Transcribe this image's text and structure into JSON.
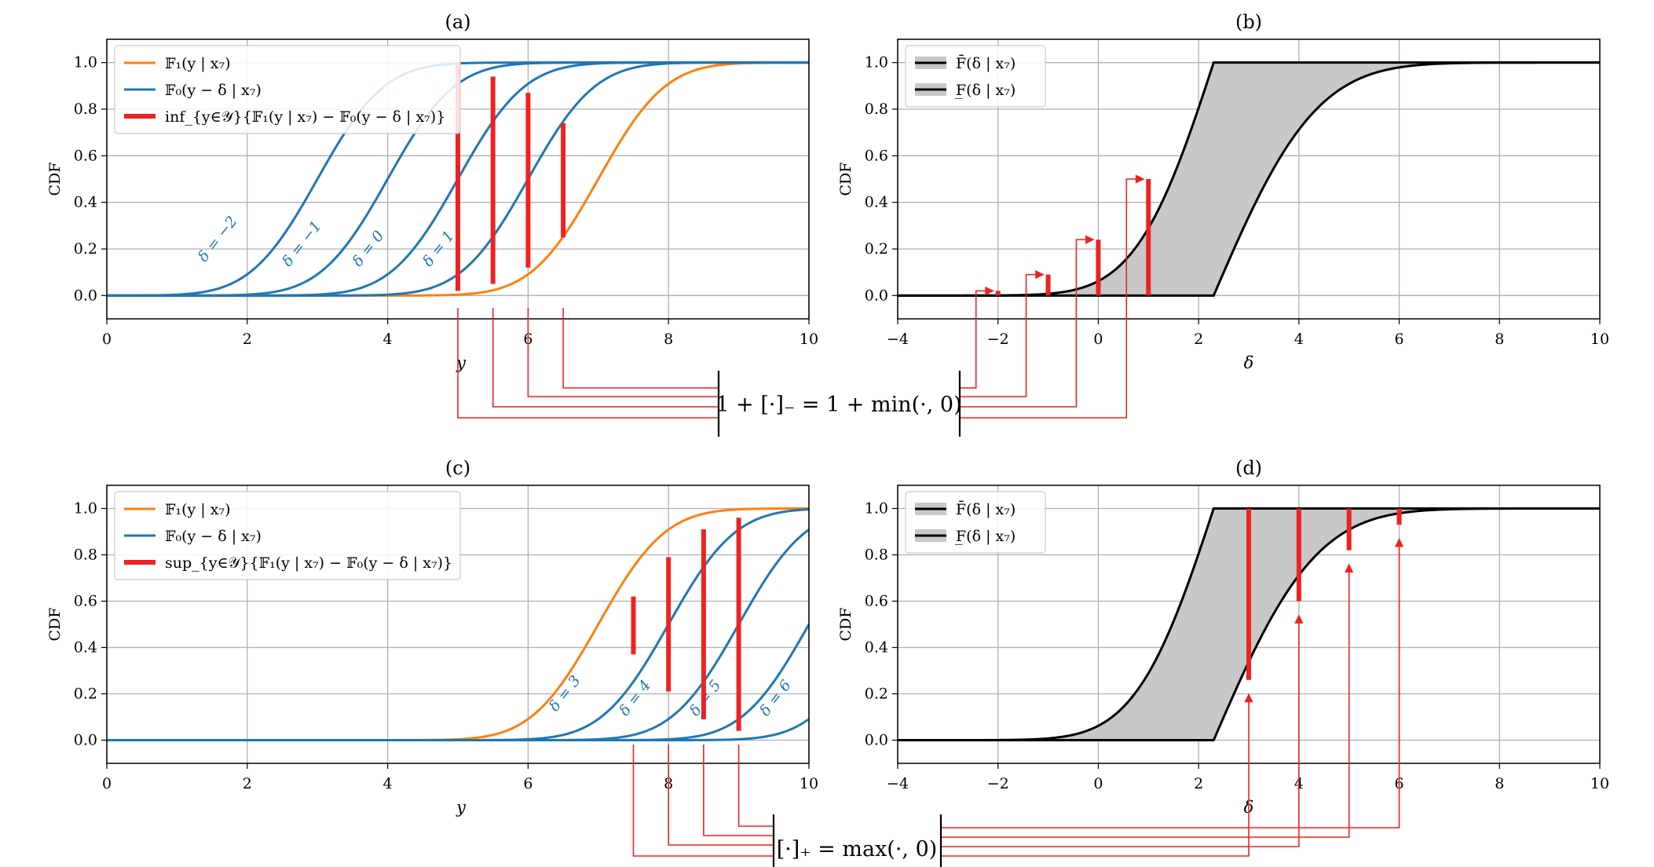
{
  "colors": {
    "orange": "#ff7f0e",
    "blue": "#1f77b4",
    "red": "#ee2222",
    "black": "#000000",
    "grid": "#b0b0b0",
    "fill": "#c8c8c8"
  },
  "chart_data": [
    {
      "id": "a",
      "type": "line",
      "title": "(a)",
      "xlabel": "y",
      "ylabel": "CDF",
      "xlim": [
        0,
        10
      ],
      "ylim": [
        -0.1,
        1.1
      ],
      "xticks": [
        "0",
        "2",
        "4",
        "6",
        "8",
        "10"
      ],
      "yticks": [
        "0.0",
        "0.2",
        "0.4",
        "0.6",
        "0.8",
        "1.0"
      ],
      "legend": {
        "placement": "upper-left",
        "entries": [
          "𝔽₁(y | x₇)",
          "𝔽₀(y − δ | x₇)",
          "inf_{y∈𝒴}{𝔽₁(y | x₇) − 𝔽₀(y − δ | x₇)}"
        ]
      },
      "series": [
        {
          "name": "𝔽₁(y | x₇)",
          "color": "orange",
          "mu": 7.0,
          "sigma": 0.75
        },
        {
          "name": "δ = −2",
          "color": "blue",
          "mu": 3.0,
          "sigma": 0.75
        },
        {
          "name": "δ = −1",
          "color": "blue",
          "mu": 4.0,
          "sigma": 0.75
        },
        {
          "name": "δ = 0",
          "color": "blue",
          "mu": 5.0,
          "sigma": 0.75
        },
        {
          "name": "δ = 1",
          "color": "blue",
          "mu": 6.0,
          "sigma": 0.75
        }
      ],
      "curve_labels": [
        {
          "text": "δ = −2",
          "x": 1.4,
          "y": 0.14
        },
        {
          "text": "δ = −1",
          "x": 2.6,
          "y": 0.12
        },
        {
          "text": "δ = 0",
          "x": 3.6,
          "y": 0.12
        },
        {
          "text": "δ = 1",
          "x": 4.6,
          "y": 0.12
        }
      ],
      "gap_bars": [
        {
          "x": 5.0,
          "y0": 0.02,
          "y1": 0.99
        },
        {
          "x": 5.5,
          "y0": 0.05,
          "y1": 0.94
        },
        {
          "x": 6.0,
          "y0": 0.12,
          "y1": 0.87
        },
        {
          "x": 6.5,
          "y0": 0.25,
          "y1": 0.74
        }
      ]
    },
    {
      "id": "b",
      "type": "area",
      "title": "(b)",
      "xlabel": "δ",
      "ylabel": "CDF",
      "xlim": [
        -4,
        10
      ],
      "ylim": [
        -0.1,
        1.1
      ],
      "xticks": [
        "−4",
        "−2",
        "0",
        "2",
        "4",
        "6",
        "8",
        "10"
      ],
      "yticks": [
        "0.0",
        "0.2",
        "0.4",
        "0.6",
        "0.8",
        "1.0"
      ],
      "legend": {
        "placement": "upper-left",
        "entries": [
          "F̄(δ | x₇)",
          "F̲(δ | x₇)"
        ]
      },
      "upper_bound_kink": 2.3,
      "lower_bound_kink": 2.3,
      "value_bars": [
        {
          "x": -2,
          "y": 0.02
        },
        {
          "x": -1,
          "y": 0.09
        },
        {
          "x": 0,
          "y": 0.24
        },
        {
          "x": 1,
          "y": 0.5
        }
      ]
    },
    {
      "id": "c",
      "type": "line",
      "title": "(c)",
      "xlabel": "y",
      "ylabel": "CDF",
      "xlim": [
        0,
        10
      ],
      "ylim": [
        -0.1,
        1.1
      ],
      "xticks": [
        "0",
        "2",
        "4",
        "6",
        "8",
        "10"
      ],
      "yticks": [
        "0.0",
        "0.2",
        "0.4",
        "0.6",
        "0.8",
        "1.0"
      ],
      "legend": {
        "placement": "upper-left",
        "entries": [
          "𝔽₁(y | x₇)",
          "𝔽₀(y − δ | x₇)",
          "sup_{y∈𝒴}{𝔽₁(y | x₇) − 𝔽₀(y − δ | x₇)}"
        ]
      },
      "series": [
        {
          "name": "𝔽₁(y | x₇)",
          "color": "orange",
          "mu": 7.0,
          "sigma": 0.75
        },
        {
          "name": "δ = 3",
          "color": "blue",
          "mu": 8.0,
          "sigma": 0.75
        },
        {
          "name": "δ = 4",
          "color": "blue",
          "mu": 9.0,
          "sigma": 0.75
        },
        {
          "name": "δ = 5",
          "color": "blue",
          "mu": 10.0,
          "sigma": 0.75
        },
        {
          "name": "δ = 6",
          "color": "blue",
          "mu": 11.0,
          "sigma": 0.75
        }
      ],
      "curve_labels": [
        {
          "text": "δ = 3",
          "x": 6.4,
          "y": 0.12
        },
        {
          "text": "δ = 4",
          "x": 7.4,
          "y": 0.1
        },
        {
          "text": "δ = 5",
          "x": 8.4,
          "y": 0.1
        },
        {
          "text": "δ = 6",
          "x": 9.4,
          "y": 0.1
        }
      ],
      "gap_bars": [
        {
          "x": 7.5,
          "y0": 0.37,
          "y1": 0.62
        },
        {
          "x": 8.0,
          "y0": 0.21,
          "y1": 0.79
        },
        {
          "x": 8.5,
          "y0": 0.09,
          "y1": 0.91
        },
        {
          "x": 9.0,
          "y0": 0.04,
          "y1": 0.96
        }
      ]
    },
    {
      "id": "d",
      "type": "area",
      "title": "(d)",
      "xlabel": "δ",
      "ylabel": "CDF",
      "xlim": [
        -4,
        10
      ],
      "ylim": [
        -0.1,
        1.1
      ],
      "xticks": [
        "−4",
        "−2",
        "0",
        "2",
        "4",
        "6",
        "8",
        "10"
      ],
      "yticks": [
        "0.0",
        "0.2",
        "0.4",
        "0.6",
        "0.8",
        "1.0"
      ],
      "legend": {
        "placement": "upper-left",
        "entries": [
          "F̄(δ | x₇)",
          "F̲(δ | x₇)"
        ]
      },
      "upper_bound_kink": 2.3,
      "lower_bound_kink": 2.3,
      "value_bars": [
        {
          "x": 3,
          "y": 0.26
        },
        {
          "x": 4,
          "y": 0.6
        },
        {
          "x": 5,
          "y": 0.82
        },
        {
          "x": 6,
          "y": 0.93
        }
      ]
    }
  ],
  "operators": {
    "top": "1 + [·]₋ = 1 + min(·, 0)",
    "bottom": "[·]₊ = max(·, 0)"
  }
}
